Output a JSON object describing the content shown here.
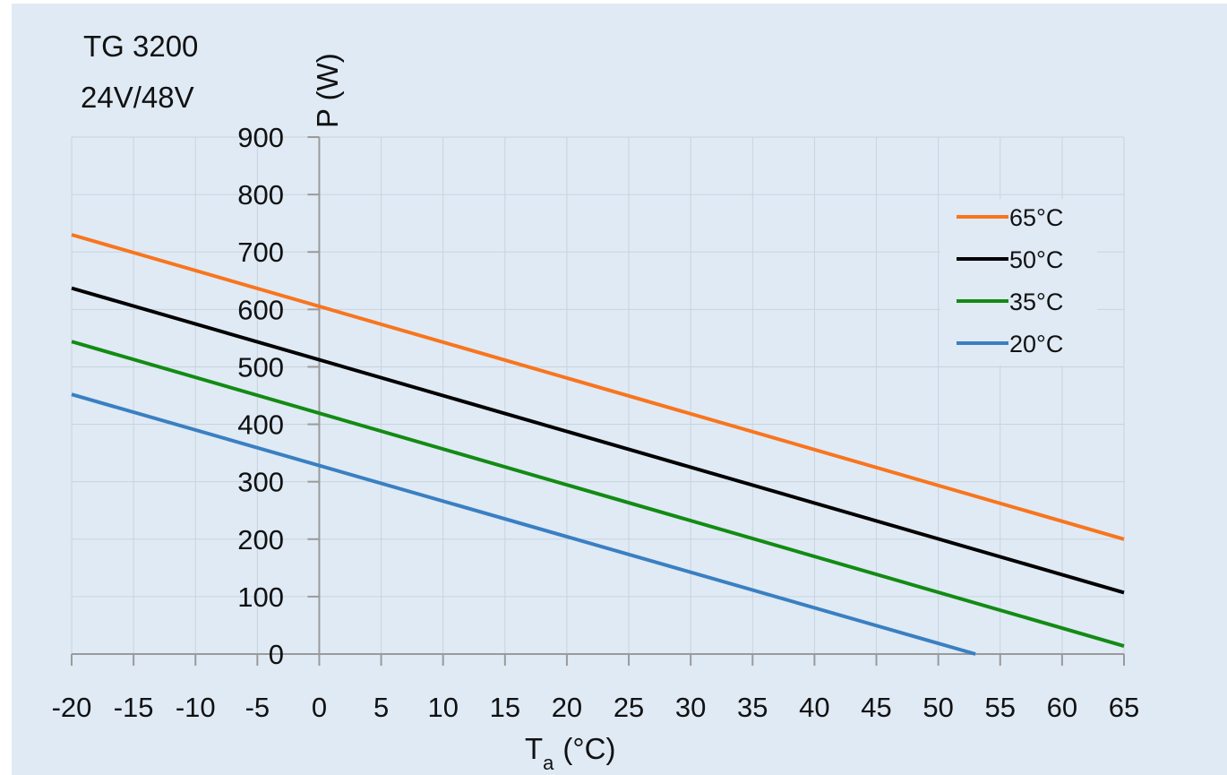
{
  "header": {
    "line1": "TG 3200",
    "line2": "24V/48V"
  },
  "chart_data": {
    "type": "line",
    "xlabel_main": "T",
    "xlabel_sub": "a",
    "xlabel_unit": "(°C)",
    "ylabel": "P (W)",
    "xlim": [
      -20,
      65
    ],
    "ylim": [
      0,
      900
    ],
    "x_ticks": [
      -20,
      -15,
      -10,
      -5,
      0,
      5,
      10,
      15,
      20,
      25,
      30,
      35,
      40,
      45,
      50,
      55,
      60,
      65
    ],
    "y_ticks": [
      0,
      100,
      200,
      300,
      400,
      500,
      600,
      700,
      800,
      900
    ],
    "grid": true,
    "legend_position": "top-right",
    "series": [
      {
        "name": "65°C",
        "color": "#f8751e",
        "x": [
          -20,
          65
        ],
        "y": [
          730,
          200
        ]
      },
      {
        "name": "50°C",
        "color": "#000000",
        "x": [
          -20,
          65
        ],
        "y": [
          637,
          107
        ]
      },
      {
        "name": "35°C",
        "color": "#138b13",
        "x": [
          -20,
          65
        ],
        "y": [
          544,
          14
        ]
      },
      {
        "name": "20°C",
        "color": "#3a7fc2",
        "x": [
          -20,
          53
        ],
        "y": [
          452,
          0
        ]
      }
    ]
  }
}
